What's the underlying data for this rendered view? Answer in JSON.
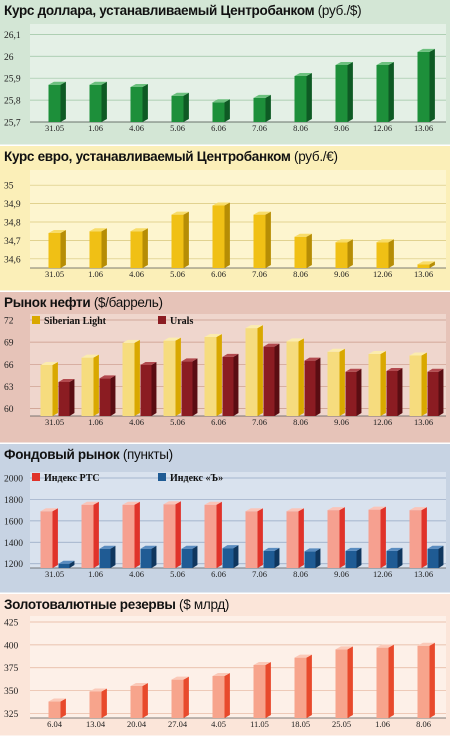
{
  "panels": [
    {
      "title": "Курс доллара, устанавливаемый Центробанком",
      "unit": "(руб./$)",
      "bg": "#d3e6d5",
      "plot_bg": "#e4f0e6",
      "grid": "#9bc4a2",
      "colors": {
        "front": "#1d8f3a",
        "side": "#0e5a24",
        "top": "#6cc07e"
      }
    },
    {
      "title": "Курс евро, устанавливаемый Центробанком",
      "unit": "(руб./€)",
      "bg": "#fbefb8",
      "plot_bg": "#fdf5cf",
      "grid": "#d8c77c",
      "colors": {
        "front": "#f0c015",
        "side": "#b68d05",
        "top": "#f8dc68"
      }
    },
    {
      "title": "Рынок нефти",
      "unit": "($/баррель)",
      "bg": "#e6c3b8",
      "plot_bg": "#efd6cd",
      "grid": "#c99888",
      "colors": {
        "a_front": "#f6dc7e",
        "a_side": "#d9a800",
        "a_top": "#fbecae",
        "b_front": "#8b1c22",
        "b_side": "#5a0d12",
        "b_top": "#b24a4f"
      }
    },
    {
      "title": "Фондовый рынок",
      "unit": "(пункты)",
      "bg": "#c7d3e3",
      "plot_bg": "#d9e2ee",
      "grid": "#93a6c2",
      "colors": {
        "a_front": "#f6a090",
        "a_side": "#e0332a",
        "a_top": "#fac4b8",
        "b_front": "#1f5b94",
        "b_side": "#0f365e",
        "b_top": "#5a8cc0"
      }
    },
    {
      "title": "Золотовалютные резервы",
      "unit": "($ млрд)",
      "bg": "#fbe5d9",
      "plot_bg": "#fdf0e8",
      "grid": "#e4b39b",
      "colors": {
        "front": "#f7a48c",
        "side": "#e84a2c",
        "top": "#fbc9b8"
      }
    }
  ],
  "chart_data": [
    {
      "type": "bar",
      "title": "Курс доллара, устанавливаемый Центробанком (руб./$)",
      "categories": [
        "31.05",
        "1.06",
        "4.06",
        "5.06",
        "6.06",
        "7.06",
        "8.06",
        "9.06",
        "12.06",
        "13.06"
      ],
      "values": [
        25.87,
        25.87,
        25.86,
        25.82,
        25.79,
        25.81,
        25.91,
        25.96,
        25.96,
        26.02
      ],
      "yticks": [
        25.7,
        25.8,
        25.9,
        26.0,
        26.1
      ],
      "ylim": [
        25.7,
        26.12
      ],
      "grid": true
    },
    {
      "type": "bar",
      "title": "Курс евро, устанавливаемый Центробанком (руб./€)",
      "categories": [
        "31.05",
        "1.06",
        "4.06",
        "5.06",
        "6.06",
        "7.06",
        "8.06",
        "9.06",
        "12.06",
        "13.06"
      ],
      "values": [
        34.74,
        34.75,
        34.75,
        34.84,
        34.89,
        34.84,
        34.72,
        34.69,
        34.69,
        34.57
      ],
      "yticks": [
        34.6,
        34.7,
        34.8,
        34.9,
        35.0
      ],
      "ylim": [
        34.55,
        35.05
      ],
      "grid": true
    },
    {
      "type": "bar",
      "title": "Рынок нефти ($/баррель)",
      "categories": [
        "31.05",
        "1.06",
        "4.06",
        "5.06",
        "6.06",
        "7.06",
        "8.06",
        "9.06",
        "12.06",
        "13.06"
      ],
      "series": [
        {
          "name": "Siberian Light",
          "values": [
            65.9,
            66.9,
            68.9,
            69.2,
            69.7,
            70.9,
            69.1,
            67.7,
            67.4,
            67.2
          ]
        },
        {
          "name": "Urals",
          "values": [
            63.6,
            64.1,
            65.9,
            66.4,
            67.0,
            68.4,
            66.5,
            65.0,
            65.1,
            65.0
          ]
        }
      ],
      "yticks": [
        60,
        63,
        66,
        69,
        72
      ],
      "ylim": [
        59,
        72
      ],
      "legend": "top-left",
      "grid": true
    },
    {
      "type": "bar",
      "title": "Фондовый рынок (пункты)",
      "categories": [
        "31.05",
        "1.06",
        "4.06",
        "5.06",
        "6.06",
        "7.06",
        "8.06",
        "9.06",
        "12.06",
        "13.06"
      ],
      "series": [
        {
          "name": "Индекс РТС",
          "values": [
            1690,
            1750,
            1750,
            1755,
            1750,
            1690,
            1690,
            1700,
            1705,
            1700
          ]
        },
        {
          "name": "Индекс «Ъ»",
          "values": [
            1200,
            1340,
            1340,
            1340,
            1345,
            1320,
            1315,
            1320,
            1320,
            1340
          ]
        }
      ],
      "yticks": [
        1200,
        1400,
        1600,
        1800,
        2000
      ],
      "ylim": [
        1160,
        2000
      ],
      "legend": "top-left",
      "grid": true
    },
    {
      "type": "bar",
      "title": "Золотовалютные резервы ($ млрд)",
      "categories": [
        "6.04",
        "13.04",
        "20.04",
        "27.04",
        "4.05",
        "11.05",
        "18.05",
        "25.05",
        "1.06",
        "8.06"
      ],
      "values": [
        338,
        349,
        355,
        362,
        366,
        378,
        386,
        395,
        397,
        399
      ],
      "yticks": [
        325,
        350,
        375,
        400,
        425
      ],
      "ylim": [
        320,
        425
      ],
      "grid": true
    }
  ]
}
